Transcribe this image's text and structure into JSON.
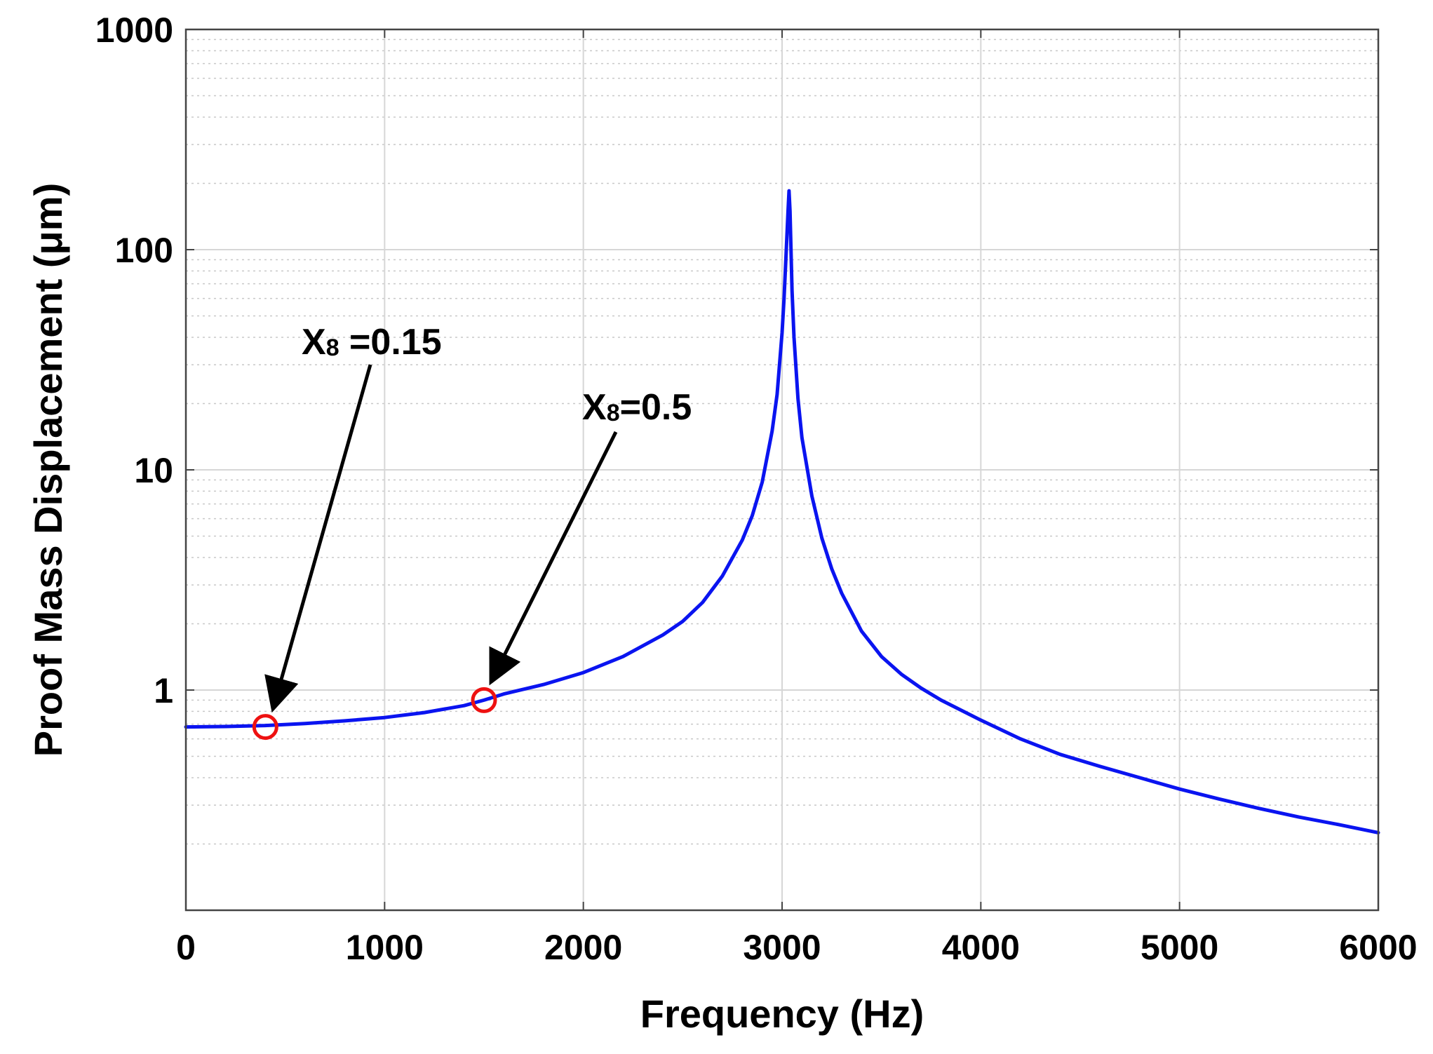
{
  "chart_data": {
    "type": "line",
    "title": "",
    "xlabel": "Frequency (Hz)",
    "ylabel": "Proof Mass Displacement (μm)",
    "xlim": [
      0,
      6000
    ],
    "ylim": [
      0.1,
      1000
    ],
    "yscale": "log",
    "grid": true,
    "x_ticks": [
      0,
      1000,
      2000,
      3000,
      4000,
      5000,
      6000
    ],
    "x_tick_labels": [
      "0",
      "1000",
      "2000",
      "3000",
      "4000",
      "5000",
      "6000"
    ],
    "y_ticks": [
      1,
      10,
      100,
      1000
    ],
    "y_tick_labels": [
      "1",
      "10",
      "100",
      "1000"
    ],
    "series": [
      {
        "name": "Proof mass displacement",
        "color": "#0a14f0",
        "x": [
          0,
          200,
          400,
          600,
          800,
          1000,
          1200,
          1400,
          1500,
          1600,
          1800,
          2000,
          2200,
          2400,
          2500,
          2600,
          2700,
          2800,
          2850,
          2900,
          2950,
          2975,
          3000,
          3010,
          3020,
          3030,
          3035,
          3040,
          3050,
          3060,
          3080,
          3100,
          3150,
          3200,
          3250,
          3300,
          3400,
          3500,
          3600,
          3700,
          3800,
          4000,
          4200,
          4400,
          4600,
          4800,
          5000,
          5200,
          5400,
          5600,
          5800,
          6000
        ],
        "y": [
          0.68,
          0.683,
          0.69,
          0.705,
          0.725,
          0.75,
          0.79,
          0.85,
          0.9,
          0.96,
          1.06,
          1.2,
          1.42,
          1.78,
          2.05,
          2.5,
          3.3,
          4.8,
          6.2,
          8.8,
          15,
          22,
          42,
          60,
          95,
          150,
          185,
          150,
          65,
          40,
          21,
          14,
          7.6,
          4.9,
          3.55,
          2.75,
          1.85,
          1.42,
          1.18,
          1.02,
          0.9,
          0.73,
          0.6,
          0.51,
          0.45,
          0.4,
          0.355,
          0.32,
          0.29,
          0.265,
          0.245,
          0.225
        ]
      }
    ],
    "markers": [
      {
        "x": 400,
        "y": 0.68,
        "color": "#ee1111"
      },
      {
        "x": 1500,
        "y": 0.9,
        "color": "#ee1111"
      }
    ],
    "annotations": [
      {
        "main": "X",
        "sub": "8",
        "rest": " =0.15",
        "target_x": 400,
        "target_y": 0.68
      },
      {
        "main": "X",
        "sub": "8",
        "rest": "=0.5",
        "target_x": 1500,
        "target_y": 0.9
      }
    ]
  }
}
